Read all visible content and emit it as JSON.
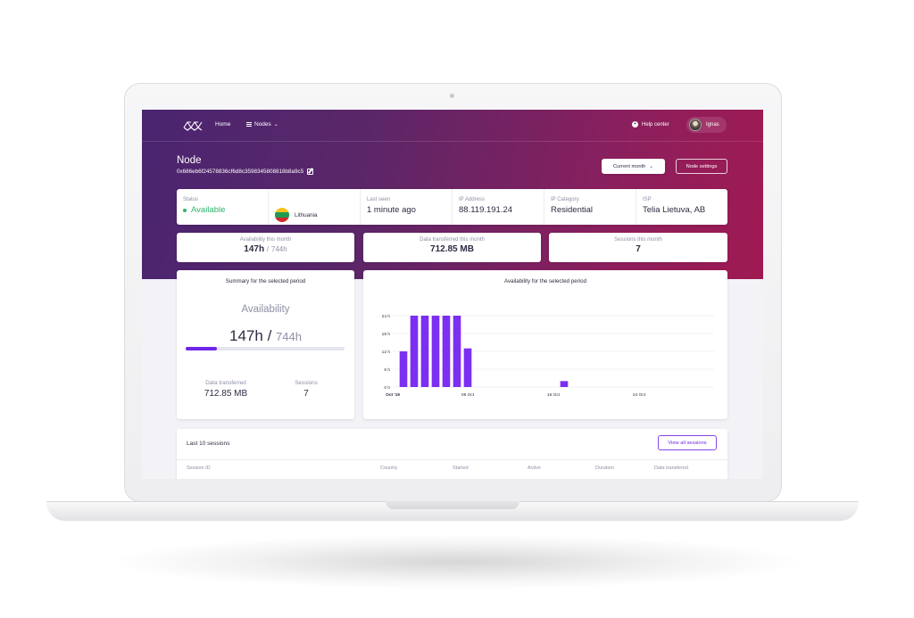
{
  "nav": {
    "logo_icon": "network-logo",
    "home": "Home",
    "nodes": "Nodes",
    "help": "Help center",
    "user": "Ignas"
  },
  "header": {
    "title": "Node",
    "node_id": "0x686eb6f24578836cf6d8c3598345808818b8a9c5",
    "period_button": "Current month",
    "settings_button": "Node settings"
  },
  "info": {
    "status": {
      "label": "Status",
      "value": "Available",
      "color": "#2fb36d"
    },
    "country": {
      "value": "Lithuania",
      "flag_colors": [
        "#f7c21c",
        "#1f9a52",
        "#d12a2a"
      ]
    },
    "last_seen": {
      "label": "Last seen",
      "value": "1 minute ago"
    },
    "ip_address": {
      "label": "IP Address",
      "value": "88.119.191.24"
    },
    "ip_category": {
      "label": "IP Category",
      "value": "Residential"
    },
    "isp": {
      "label": "ISP",
      "value": "Telia Lietuva, AB"
    }
  },
  "stats": {
    "availability": {
      "label": "Availability this month",
      "value": "147h",
      "total": "744h"
    },
    "data": {
      "label": "Data transferred this month",
      "value": "712.85 MB"
    },
    "sessions": {
      "label": "Sessions this month",
      "value": "7"
    }
  },
  "summary": {
    "title": "Summary for the selected period",
    "availability_label": "Availability",
    "availability_value": "147h",
    "availability_sep": "/",
    "availability_total": "744h",
    "progress_fraction": 0.198,
    "accent": "#6d26e8",
    "data_label": "Data transferred",
    "data_value": "712.85 MB",
    "sessions_label": "Sessions",
    "sessions_value": "7"
  },
  "chart_data": {
    "type": "bar",
    "title": "Availability for the selected period",
    "xlabel": "",
    "ylabel": "",
    "ylim": [
      0,
      24
    ],
    "yticks": [
      "0 h",
      "6 h",
      "12 h",
      "18 h",
      "24 h"
    ],
    "xticks": [
      {
        "label": "Oct '19",
        "day": 1
      },
      {
        "label": "08 Oct",
        "day": 8
      },
      {
        "label": "16 Oct",
        "day": 16
      },
      {
        "label": "24 Oct",
        "day": 24
      }
    ],
    "x_range_days": [
      1,
      31
    ],
    "bars": [
      {
        "day": 2,
        "value": 12
      },
      {
        "day": 3,
        "value": 24
      },
      {
        "day": 4,
        "value": 24
      },
      {
        "day": 5,
        "value": 24
      },
      {
        "day": 6,
        "value": 24
      },
      {
        "day": 7,
        "value": 24
      },
      {
        "day": 8,
        "value": 13
      },
      {
        "day": 17,
        "value": 2
      }
    ],
    "bar_color": "#7c2ff2",
    "grid": true
  },
  "sessions": {
    "title": "Last 10 sessions",
    "view_all": "View all sessions",
    "columns": [
      "Session ID",
      "Country",
      "Started",
      "Active",
      "Duration",
      "Data transfered"
    ]
  }
}
